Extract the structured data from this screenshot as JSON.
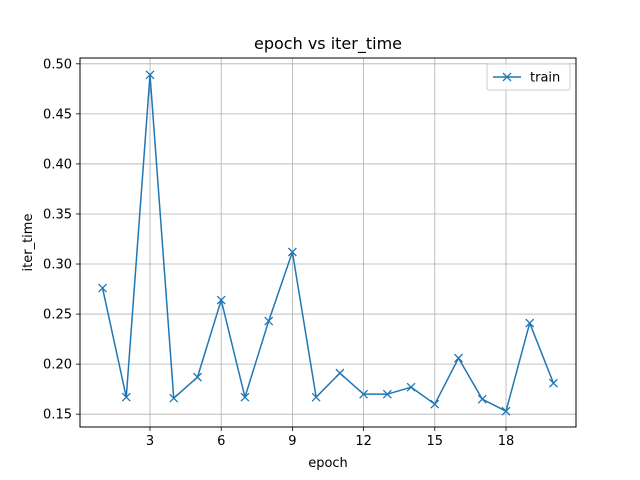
{
  "chart_data": {
    "type": "line",
    "title": "epoch vs iter_time",
    "xlabel": "epoch",
    "ylabel": "iter_time",
    "x": [
      1,
      2,
      3,
      4,
      5,
      6,
      7,
      8,
      9,
      10,
      11,
      12,
      13,
      14,
      15,
      16,
      17,
      18,
      19,
      20
    ],
    "series": [
      {
        "name": "train",
        "color": "#1f77b4",
        "marker": "x",
        "values": [
          0.276,
          0.167,
          0.489,
          0.166,
          0.187,
          0.264,
          0.167,
          0.243,
          0.312,
          0.167,
          0.191,
          0.17,
          0.17,
          0.177,
          0.16,
          0.206,
          0.165,
          0.153,
          0.241,
          0.181
        ]
      }
    ],
    "xlim": [
      0.05,
      20.95
    ],
    "ylim": [
      0.1372,
      0.5058
    ],
    "xticks": [
      3,
      6,
      9,
      12,
      15,
      18
    ],
    "xtick_labels": [
      "3",
      "6",
      "9",
      "12",
      "15",
      "18"
    ],
    "yticks": [
      0.15,
      0.2,
      0.25,
      0.3,
      0.35,
      0.4,
      0.45,
      0.5
    ],
    "ytick_labels": [
      "0.15",
      "0.20",
      "0.25",
      "0.30",
      "0.35",
      "0.40",
      "0.45",
      "0.50"
    ],
    "grid": true,
    "legend": "upper-right"
  }
}
